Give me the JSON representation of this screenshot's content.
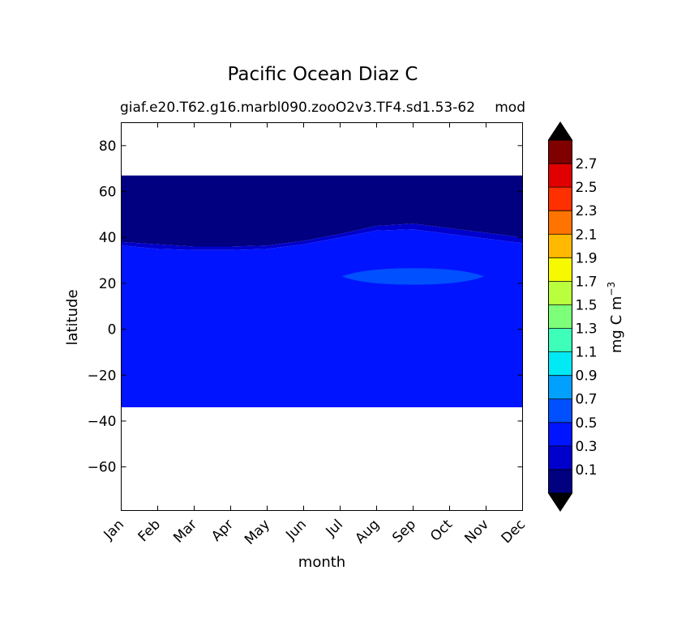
{
  "chart_data": {
    "type": "heatmap",
    "title": "Pacific Ocean Diaz C",
    "subtitle_left": "giaf.e20.T62.g16.marbl090.zooO2v3.TF4.sd1.53-62",
    "subtitle_right": "mod",
    "xlabel": "month",
    "ylabel": "latitude",
    "x_categories": [
      "Jan",
      "Feb",
      "Mar",
      "Apr",
      "May",
      "Jun",
      "Jul",
      "Aug",
      "Sep",
      "Oct",
      "Nov",
      "Dec"
    ],
    "ylim": [
      -79,
      90
    ],
    "yticks": [
      80,
      60,
      40,
      20,
      0,
      -20,
      -40,
      -60
    ],
    "data_lat_range": [
      -34,
      67
    ],
    "colorbar": {
      "label_main": "mg C m",
      "label_exp": "−3",
      "levels": [
        0,
        0.2,
        0.4,
        0.6,
        0.8,
        1.0,
        1.2,
        1.4,
        1.6,
        1.8,
        2.0,
        2.2,
        2.4,
        2.6,
        2.8
      ],
      "tick_labels": [
        "0.1",
        "0.3",
        "0.5",
        "0.7",
        "0.9",
        "1.1",
        "1.3",
        "1.5",
        "1.7",
        "1.9",
        "2.1",
        "2.3",
        "2.5",
        "2.7"
      ],
      "colors": [
        "#000080",
        "#0000cd",
        "#0014ff",
        "#0050ff",
        "#00a0ff",
        "#00eaf6",
        "#3dffba",
        "#7dff7a",
        "#baff3d",
        "#f6f900",
        "#ffb900",
        "#ff7300",
        "#ff3000",
        "#e00000",
        "#800000"
      ],
      "extend_colors": {
        "under": "#000000",
        "over": "#000000"
      }
    },
    "regions": [
      {
        "name": "0.0-0.2",
        "color": "#000080",
        "lat_top": 67,
        "boundary_lat": [
          38,
          37,
          36,
          36,
          36.5,
          38.5,
          41.5,
          45,
          46,
          44,
          42,
          40
        ]
      },
      {
        "name": "0.2-0.4",
        "color": "#0000cd",
        "boundary_lat": [
          36.5,
          35,
          34.5,
          34.5,
          35,
          37,
          40,
          43,
          43.5,
          41.5,
          39.5,
          37.5
        ]
      },
      {
        "name": "0.4-0.6",
        "color": "#0014ff",
        "lat_bottom": -34
      },
      {
        "name": "0.6-0.8",
        "color": "#0050ff",
        "patch": {
          "month_center": 8.0,
          "half_width": 1.95,
          "lat_center": 23,
          "half_height": 3.6
        }
      }
    ]
  }
}
